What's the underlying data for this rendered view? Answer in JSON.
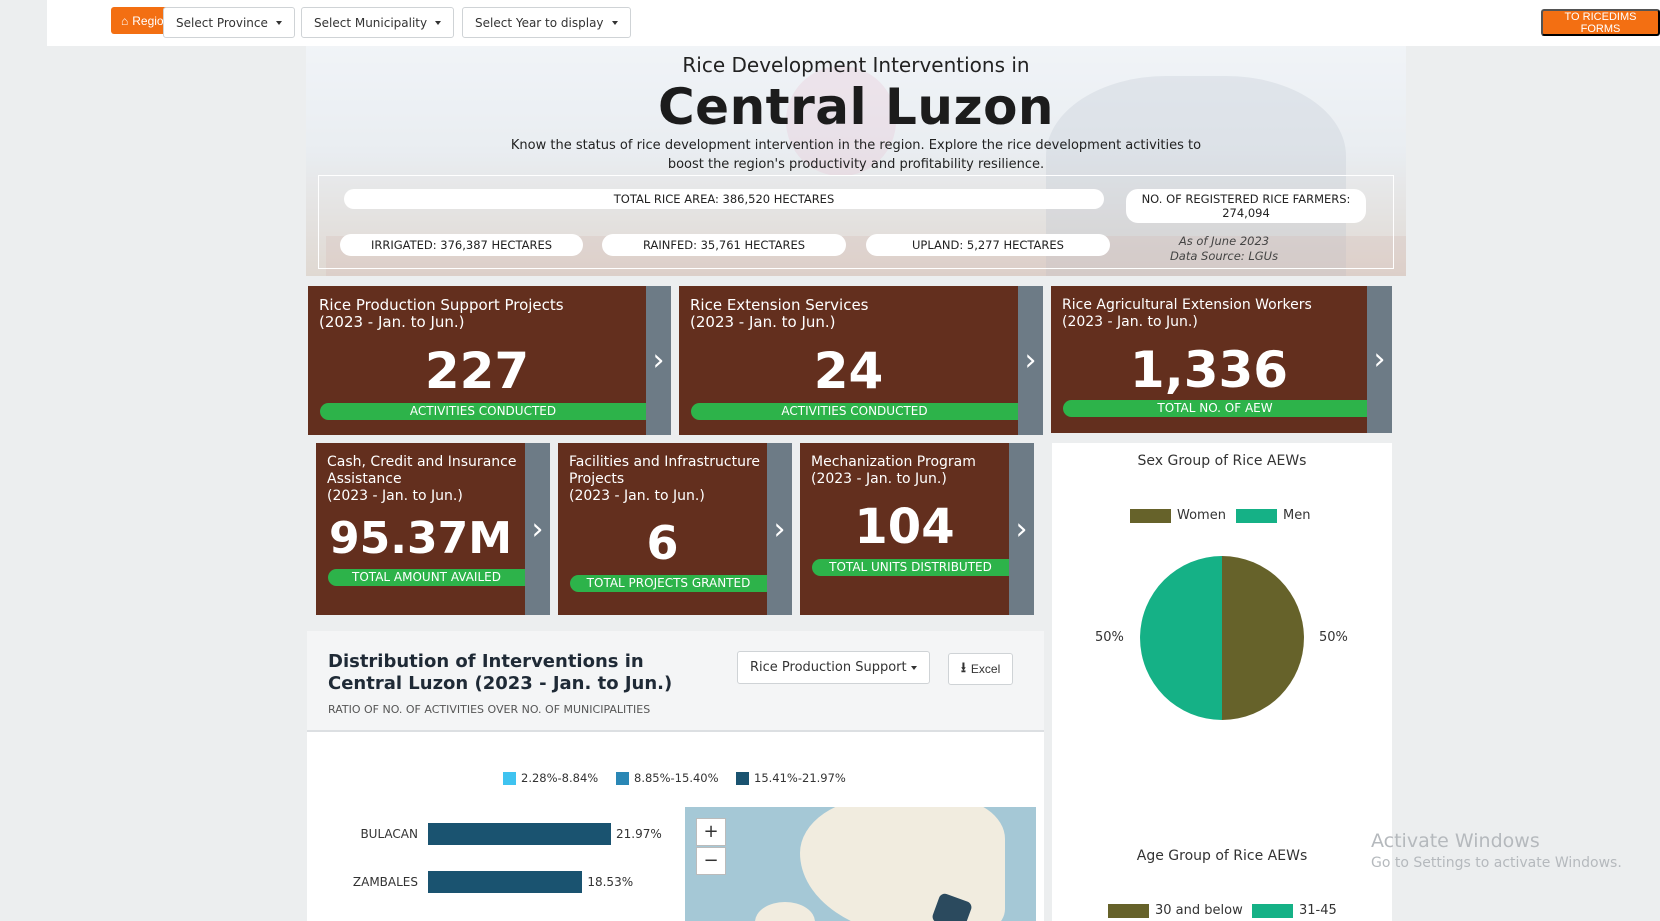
{
  "nav": {
    "regional": "Regional",
    "province": "Select Province",
    "municipality": "Select Municipality",
    "year": "Select Year to display",
    "forms": "TO RICEDIMS FORMS"
  },
  "hero": {
    "subtitle": "Rice Development Interventions in",
    "title": "Central Luzon",
    "description": "Know the status of rice development intervention in the region. Explore the rice development activities to boost the region's productivity and profitability resilience.",
    "total_area": "TOTAL RICE AREA: 386,520 HECTARES",
    "farmers": "NO. OF REGISTERED RICE FARMERS: 274,094",
    "irrigated": "IRRIGATED: 376,387 HECTARES",
    "rainfed": "RAINFED: 35,761 HECTARES",
    "upland": "UPLAND: 5,277 HECTARES",
    "as_of": "As of June 2023",
    "source": "Data Source: LGUs"
  },
  "cards": [
    {
      "title1": "Rice Production Support Projects",
      "title2": "(2023 - Jan. to Jun.)",
      "value": "227",
      "label": "ACTIVITIES CONDUCTED"
    },
    {
      "title1": "Rice Extension Services",
      "title2": "(2023 - Jan. to Jun.)",
      "value": "24",
      "label": "ACTIVITIES CONDUCTED"
    },
    {
      "title1": "Rice Agricultural Extension Workers",
      "title2": "(2023 - Jan. to Jun.)",
      "value": "1,336",
      "label": "TOTAL NO. OF AEW"
    },
    {
      "title1": "Cash, Credit and Insurance",
      "title2": "Assistance",
      "title3": "(2023 - Jan. to Jun.)",
      "value": "95.37M",
      "label": "TOTAL AMOUNT AVAILED"
    },
    {
      "title1": "Facilities and Infrastructure",
      "title2": "Projects",
      "title3": "(2023 - Jan. to Jun.)",
      "value": "6",
      "label": "TOTAL PROJECTS GRANTED"
    },
    {
      "title1": "Mechanization Program",
      "title2": "(2023 - Jan. to Jun.)",
      "value": "104",
      "label": "TOTAL UNITS DISTRIBUTED"
    }
  ],
  "distribution": {
    "title": "Distribution of Interventions in Central Luzon (2023 - Jan. to Jun.)",
    "subtitle": "RATIO OF NO. OF ACTIVITIES OVER NO. OF MUNICIPALITIES",
    "dropdown": "Rice Production Support",
    "excel": "Excel",
    "legend": [
      {
        "label": "2.28%-8.84%",
        "color": "#3fc3f0"
      },
      {
        "label": "8.85%-15.40%",
        "color": "#2a87b5"
      },
      {
        "label": "15.41%-21.97%",
        "color": "#1a5370"
      }
    ],
    "map_zoom_in": "+",
    "map_zoom_out": "−"
  },
  "chart_data": [
    {
      "type": "bar",
      "categories": [
        "BULACAN",
        "ZAMBALES"
      ],
      "values": [
        21.97,
        18.53
      ],
      "value_labels": [
        "21.97%",
        "18.53%"
      ],
      "color": "#1a5370"
    },
    {
      "type": "pie",
      "title": "Sex Group of Rice AEWs",
      "categories": [
        "Women",
        "Men"
      ],
      "values": [
        50,
        50
      ],
      "value_labels": [
        "50%",
        "50%"
      ],
      "colors": [
        "#66622a",
        "#15b186"
      ]
    },
    {
      "type": "pie",
      "title": "Age Group of Rice AEWs",
      "categories": [
        "30 and below",
        "31-45"
      ],
      "colors": [
        "#66622a",
        "#15b186"
      ]
    }
  ],
  "watermark": {
    "line1": "Activate Windows",
    "line2": "Go to Settings to activate Windows."
  }
}
